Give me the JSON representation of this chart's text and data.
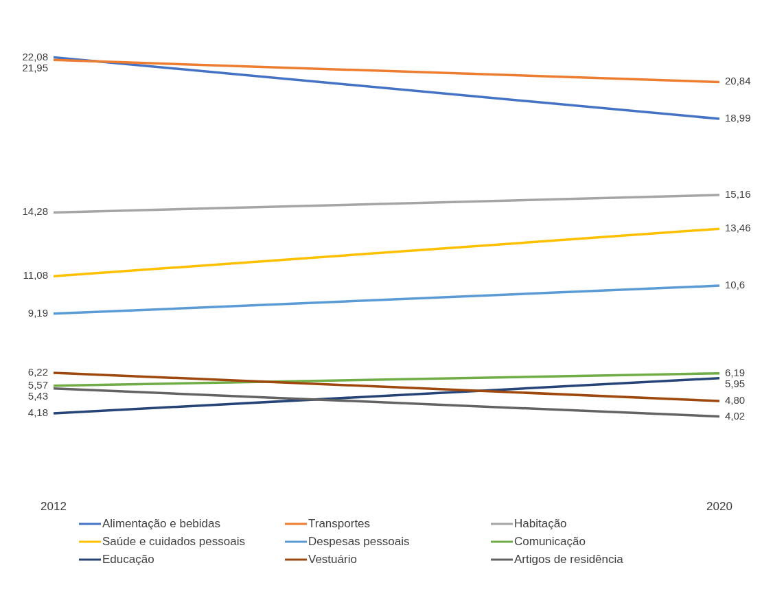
{
  "chart_data": {
    "type": "line",
    "categories": [
      "2012",
      "2020"
    ],
    "tick_labels": "x",
    "legend": "bottom",
    "marker": "none",
    "line_style": "solid",
    "series": [
      {
        "name": "Alimentação e bebidas",
        "color": "#4472c4",
        "values": [
          22.08,
          18.99
        ],
        "value_labels": [
          "22,08",
          "18,99"
        ]
      },
      {
        "name": "Transportes",
        "color": "#ed7d31",
        "values": [
          21.95,
          20.84
        ],
        "value_labels": [
          "21,95",
          "20,84"
        ]
      },
      {
        "name": "Habitação",
        "color": "#a5a5a5",
        "values": [
          14.28,
          15.16
        ],
        "value_labels": [
          "14,28",
          "15,16"
        ]
      },
      {
        "name": "Saúde e cuidados pessoais",
        "color": "#ffc000",
        "values": [
          11.08,
          13.46
        ],
        "value_labels": [
          "11,08",
          "13,46"
        ]
      },
      {
        "name": "Despesas pessoais",
        "color": "#5b9bd5",
        "values": [
          9.19,
          10.6
        ],
        "value_labels": [
          "9,19",
          "10,6"
        ]
      },
      {
        "name": "Comunicação",
        "color": "#70ad47",
        "values": [
          5.57,
          6.19
        ],
        "value_labels": [
          "5,57",
          "6,19"
        ]
      },
      {
        "name": "Educação",
        "color": "#264478",
        "values": [
          4.18,
          5.95
        ],
        "value_labels": [
          "4,18",
          "5,95"
        ]
      },
      {
        "name": "Vestuário",
        "color": "#9e480e",
        "values": [
          6.22,
          4.8
        ],
        "value_labels": [
          "6,22",
          "4,80"
        ]
      },
      {
        "name": "Artigos de residência",
        "color": "#636363",
        "values": [
          5.43,
          4.02
        ],
        "value_labels": [
          "5,43",
          "4,02"
        ]
      }
    ]
  }
}
